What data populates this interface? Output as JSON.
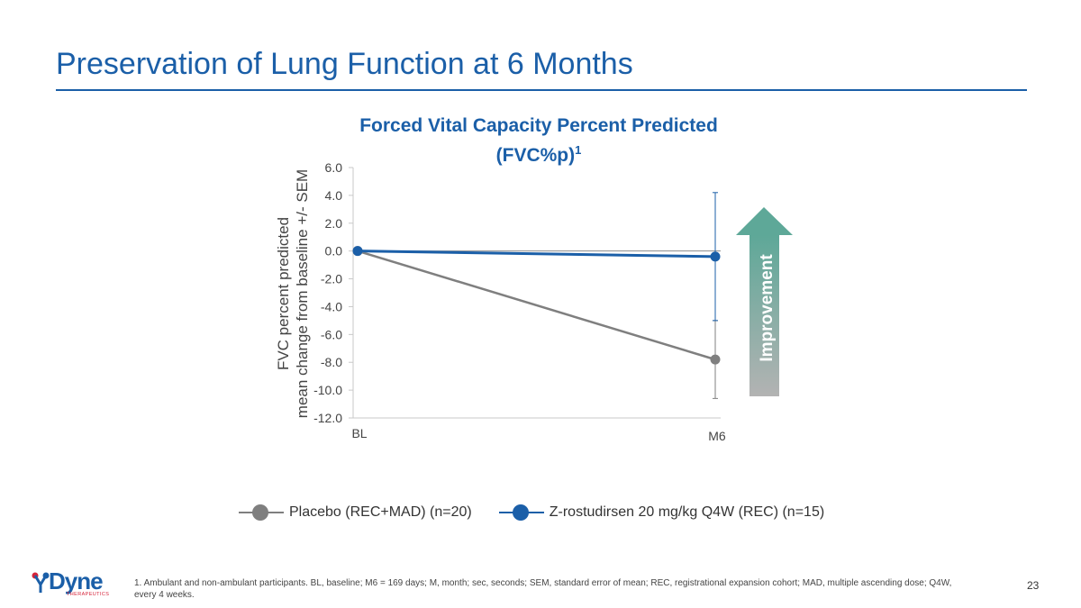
{
  "slide": {
    "title": "Preservation of Lung Function at 6 Months",
    "footnote": "1. Ambulant and non-ambulant participants. BL, baseline; M6 = 169 days; M, month; sec, seconds; SEM, standard error of mean; REC, registrational expansion cohort; MAD, multiple ascending dose; Q4W, every 4 weeks.",
    "page_number": "23"
  },
  "logo": {
    "name": "Dyne",
    "sub": "THERAPEUTICS"
  },
  "chart_data": {
    "type": "line",
    "title": "Forced Vital Capacity Percent Predicted (FVC%p)",
    "title_line1": "Forced Vital Capacity Percent Predicted",
    "title_line2": "(FVC%p)",
    "title_superscript": "1",
    "xlabel": "",
    "ylabel": "FVC percent predicted mean change from baseline +/- SEM",
    "ylabel_line1": "FVC percent predicted",
    "ylabel_line2": "mean change from baseline +/- SEM",
    "categories": [
      "BL",
      "M6"
    ],
    "ylim": [
      -12.0,
      6.0
    ],
    "yticks": [
      "6.0",
      "4.0",
      "2.0",
      "0.0",
      "-2.0",
      "-4.0",
      "-6.0",
      "-8.0",
      "-10.0",
      "-12.0"
    ],
    "series": [
      {
        "name": "Placebo (REC+MAD) (n=20)",
        "color": "#7f7f7f",
        "values": [
          0.0,
          -7.8
        ],
        "sem_low": [
          0.0,
          -10.6
        ],
        "sem_high": [
          0.0,
          -5.0
        ]
      },
      {
        "name": "Z-rostudirsen 20 mg/kg Q4W (REC) (n=15)",
        "color": "#1b5fa8",
        "values": [
          0.0,
          -0.4
        ],
        "sem_low": [
          0.0,
          -5.0
        ],
        "sem_high": [
          0.0,
          4.2
        ]
      }
    ],
    "annotation": {
      "text": "Improvement",
      "direction": "up"
    },
    "legend_position": "bottom"
  }
}
